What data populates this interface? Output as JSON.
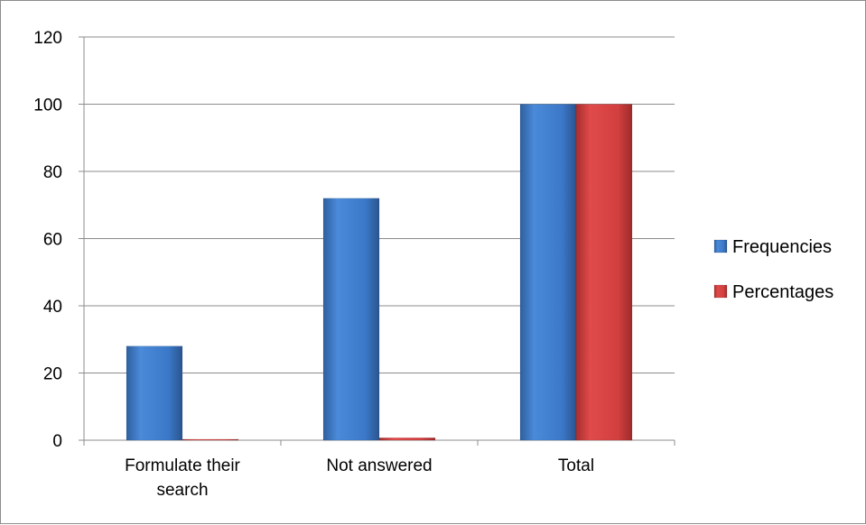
{
  "chart_data": {
    "type": "bar",
    "categories": [
      "Formulate their search",
      "Not answered",
      "Total"
    ],
    "category_lines": [
      [
        "Formulate their",
        "search"
      ],
      [
        "Not answered"
      ],
      [
        "Total"
      ]
    ],
    "series": [
      {
        "name": "Frequencies",
        "values": [
          28,
          72,
          100
        ],
        "color": "#3b78c8"
      },
      {
        "name": "Percentages",
        "values": [
          0.28,
          0.72,
          100
        ],
        "color": "#d23f3f"
      }
    ],
    "ylim": [
      0,
      120
    ],
    "yticks": [
      0,
      20,
      40,
      60,
      80,
      100,
      120
    ],
    "grid": true,
    "legend_position": "right"
  }
}
